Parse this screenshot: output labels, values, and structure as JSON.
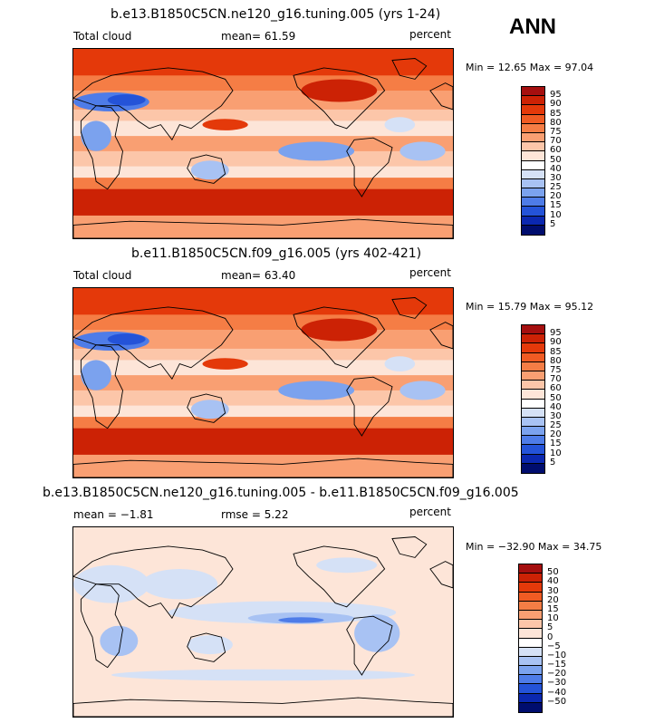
{
  "season": "ANN",
  "panels": [
    {
      "id": "p1",
      "title": "b.e13.B1850C5CN.ne120_g16.tuning.005 (yrs 1-24)",
      "left_label": "Total cloud",
      "center_label": "mean=   61.59",
      "right_label": "percent",
      "minmax": "Min =   12.65 Max =   97.04",
      "colorbar": {
        "levels": [
          "95",
          "90",
          "85",
          "80",
          "75",
          "70",
          "60",
          "50",
          "40",
          "30",
          "25",
          "20",
          "15",
          "10",
          "5"
        ],
        "colors": [
          "#a50f0f",
          "#cc2205",
          "#e4390a",
          "#f05b23",
          "#f57d45",
          "#f99f72",
          "#fcc6a9",
          "#fde5d8",
          "#ffffff",
          "#d5e1f6",
          "#a8c2f3",
          "#7ba2ee",
          "#4e7ce8",
          "#2453d8",
          "#0b28b0",
          "#000d6e"
        ]
      },
      "map_type": "absolute"
    },
    {
      "id": "p2",
      "title": "b.e11.B1850C5CN.f09_g16.005 (yrs 402-421)",
      "left_label": "Total cloud",
      "center_label": "mean=   63.40",
      "right_label": "percent",
      "minmax": "Min =   15.79 Max =   95.12",
      "colorbar": {
        "levels": [
          "95",
          "90",
          "85",
          "80",
          "75",
          "70",
          "60",
          "50",
          "40",
          "30",
          "25",
          "20",
          "15",
          "10",
          "5"
        ],
        "colors": [
          "#a50f0f",
          "#cc2205",
          "#e4390a",
          "#f05b23",
          "#f57d45",
          "#f99f72",
          "#fcc6a9",
          "#fde5d8",
          "#ffffff",
          "#d5e1f6",
          "#a8c2f3",
          "#7ba2ee",
          "#4e7ce8",
          "#2453d8",
          "#0b28b0",
          "#000d6e"
        ]
      },
      "map_type": "absolute"
    },
    {
      "id": "p3",
      "title": "b.e13.B1850C5CN.ne120_g16.tuning.005 - b.e11.B1850C5CN.f09_g16.005",
      "left_label": "mean =  −1.81",
      "center_label": "rmse =    5.22",
      "right_label": "percent",
      "minmax": "Min = −32.90 Max =   34.75",
      "colorbar": {
        "levels": [
          "50",
          "40",
          "30",
          "20",
          "15",
          "10",
          "5",
          "0",
          "−5",
          "−10",
          "−15",
          "−20",
          "−30",
          "−40",
          "−50"
        ],
        "colors": [
          "#a50f0f",
          "#cc2205",
          "#e4390a",
          "#f05b23",
          "#f57d45",
          "#f99f72",
          "#fcc6a9",
          "#fde5d8",
          "#ffffff",
          "#d5e1f6",
          "#a8c2f3",
          "#7ba2ee",
          "#4e7ce8",
          "#2453d8",
          "#0b28b0",
          "#000d6e"
        ]
      },
      "map_type": "difference"
    }
  ],
  "chart_data": {
    "type": "heatmap",
    "variable": "Total cloud",
    "units": "percent",
    "season": "ANN",
    "panels": [
      {
        "title": "b.e13.B1850C5CN.ne120_g16.tuning.005 (yrs 1-24)",
        "mean": 61.59,
        "min": 12.65,
        "max": 97.04,
        "contour_levels": [
          5,
          10,
          15,
          20,
          25,
          30,
          40,
          50,
          60,
          70,
          75,
          80,
          85,
          90,
          95
        ]
      },
      {
        "title": "b.e11.B1850C5CN.f09_g16.005 (yrs 402-421)",
        "mean": 63.4,
        "min": 15.79,
        "max": 95.12,
        "contour_levels": [
          5,
          10,
          15,
          20,
          25,
          30,
          40,
          50,
          60,
          70,
          75,
          80,
          85,
          90,
          95
        ]
      },
      {
        "title": "b.e13.B1850C5CN.ne120_g16.tuning.005 - b.e11.B1850C5CN.f09_g16.005",
        "mean": -1.81,
        "rmse": 5.22,
        "min": -32.9,
        "max": 34.75,
        "contour_levels": [
          -50,
          -40,
          -30,
          -20,
          -15,
          -10,
          -5,
          0,
          5,
          10,
          15,
          20,
          30,
          40,
          50
        ]
      }
    ]
  }
}
